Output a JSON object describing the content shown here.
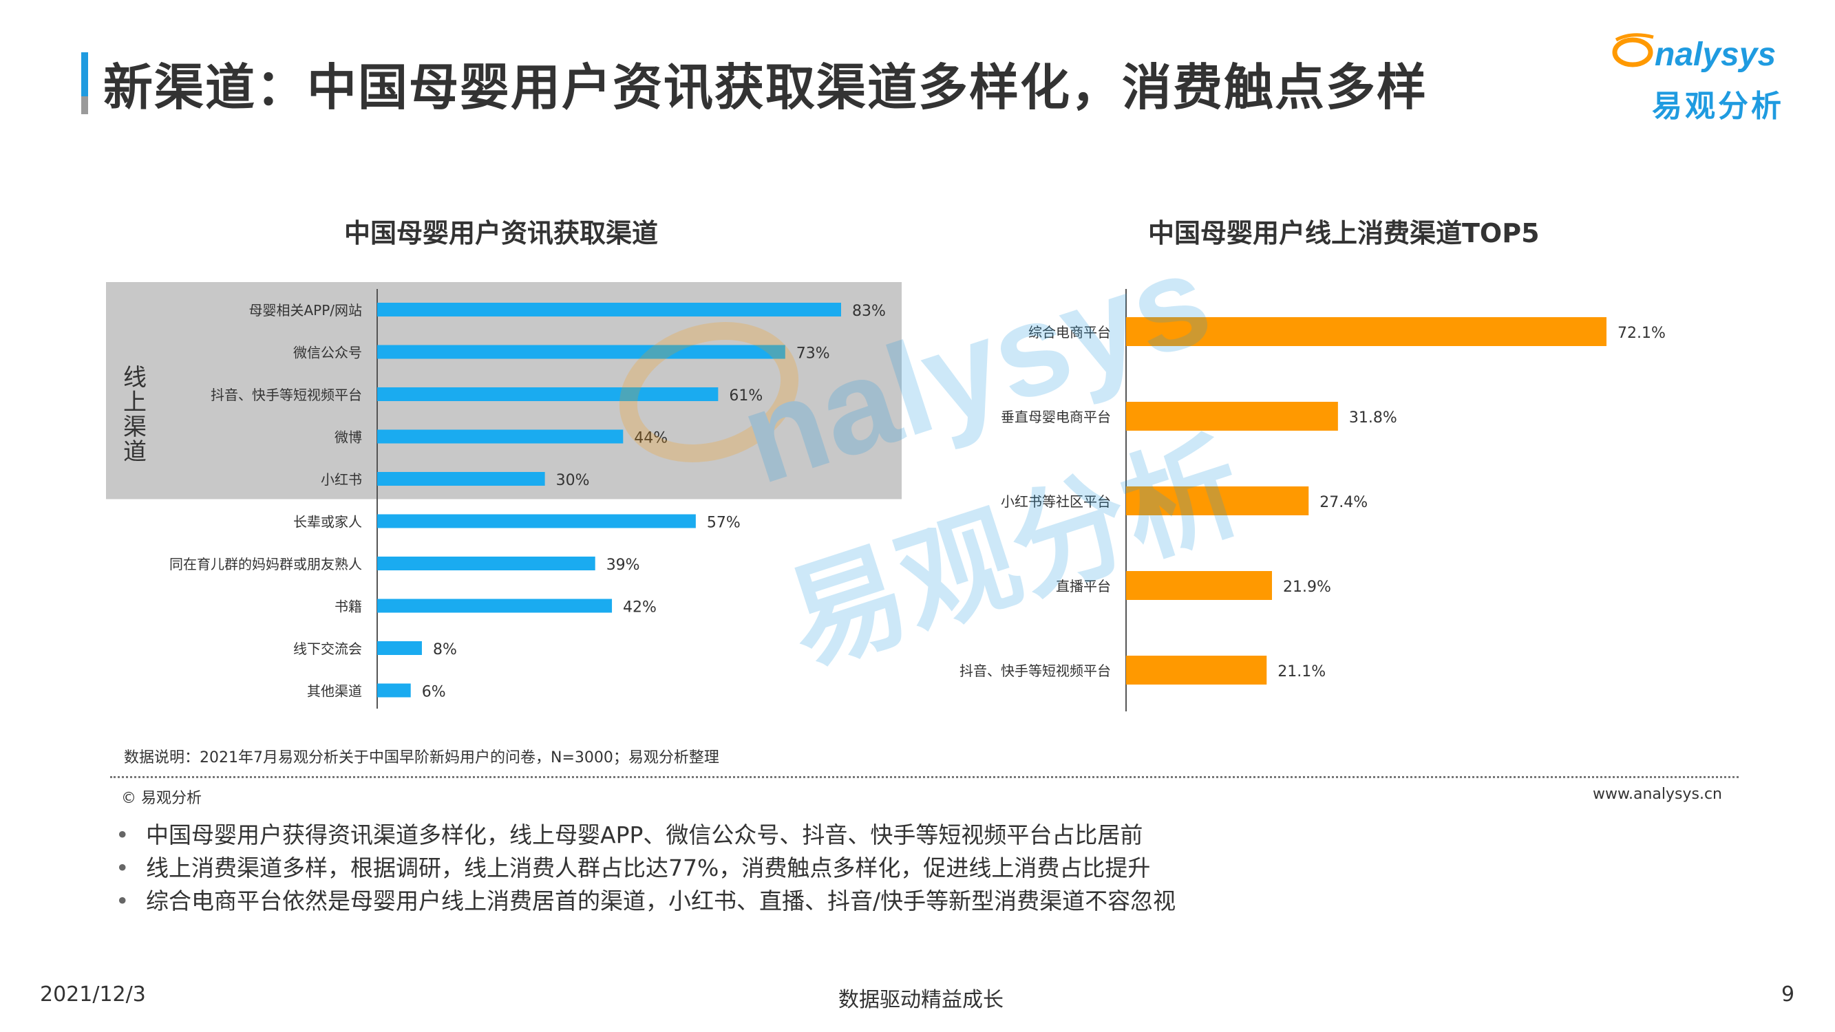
{
  "header": {
    "title": "新渠道：中国母婴用户资讯获取渠道多样化，消费触点多样",
    "logo_text": "nalysys",
    "logo_cn": "易观分析"
  },
  "colors": {
    "accent_blue": "#1f9be0",
    "bar_blue": "#1aabf0",
    "bar_orange": "#ff9900",
    "highlight_gray": "#c8c8c8"
  },
  "chart_data": [
    {
      "type": "bar",
      "orientation": "horizontal",
      "title": "中国母婴用户资讯获取渠道",
      "group_label": "线上渠道",
      "grouped_categories": [
        "母婴相关APP/网站",
        "微信公众号",
        "抖音、快手等短视频平台",
        "微博",
        "小红书"
      ],
      "categories": [
        "母婴相关APP/网站",
        "微信公众号",
        "抖音、快手等短视频平台",
        "微博",
        "小红书",
        "长辈或家人",
        "同在育儿群的妈妈群或朋友熟人",
        "书籍",
        "线下交流会",
        "其他渠道"
      ],
      "values": [
        83,
        73,
        61,
        44,
        30,
        57,
        39,
        42,
        8,
        6
      ],
      "value_labels": [
        "83%",
        "73%",
        "61%",
        "44%",
        "30%",
        "57%",
        "39%",
        "42%",
        "8%",
        "6%"
      ],
      "unit": "%",
      "xlim": [
        0,
        100
      ],
      "color": "#1aabf0"
    },
    {
      "type": "bar",
      "orientation": "horizontal",
      "title": "中国母婴用户线上消费渠道TOP5",
      "categories": [
        "综合电商平台",
        "垂直母婴电商平台",
        "小红书等社区平台",
        "直播平台",
        "抖音、快手等短视频平台"
      ],
      "values": [
        72.1,
        31.8,
        27.4,
        21.9,
        21.1
      ],
      "value_labels": [
        "72.1%",
        "31.8%",
        "27.4%",
        "21.9%",
        "21.1%"
      ],
      "unit": "%",
      "xlim": [
        0,
        100
      ],
      "color": "#ff9900"
    }
  ],
  "note": "数据说明：2021年7月易观分析关于中国早阶新妈用户的问卷，N=3000；易观分析整理",
  "copyright": "© 易观分析",
  "website": "www.analysys.cn",
  "bullets": [
    "中国母婴用户获得资讯渠道多样化，线上母婴APP、微信公众号、抖音、快手等短视频平台占比居前",
    "线上消费渠道多样，根据调研，线上消费人群占比达77%，消费触点多样化，促进线上消费占比提升",
    "综合电商平台依然是母婴用户线上消费居首的渠道，小红书、直播、抖音/快手等新型消费渠道不容忽视"
  ],
  "footer": {
    "date": "2021/12/3",
    "slogan": "数据驱动精益成长",
    "page": "9"
  },
  "watermark": {
    "text_en": "nalysys",
    "text_cn": "易观分析"
  }
}
